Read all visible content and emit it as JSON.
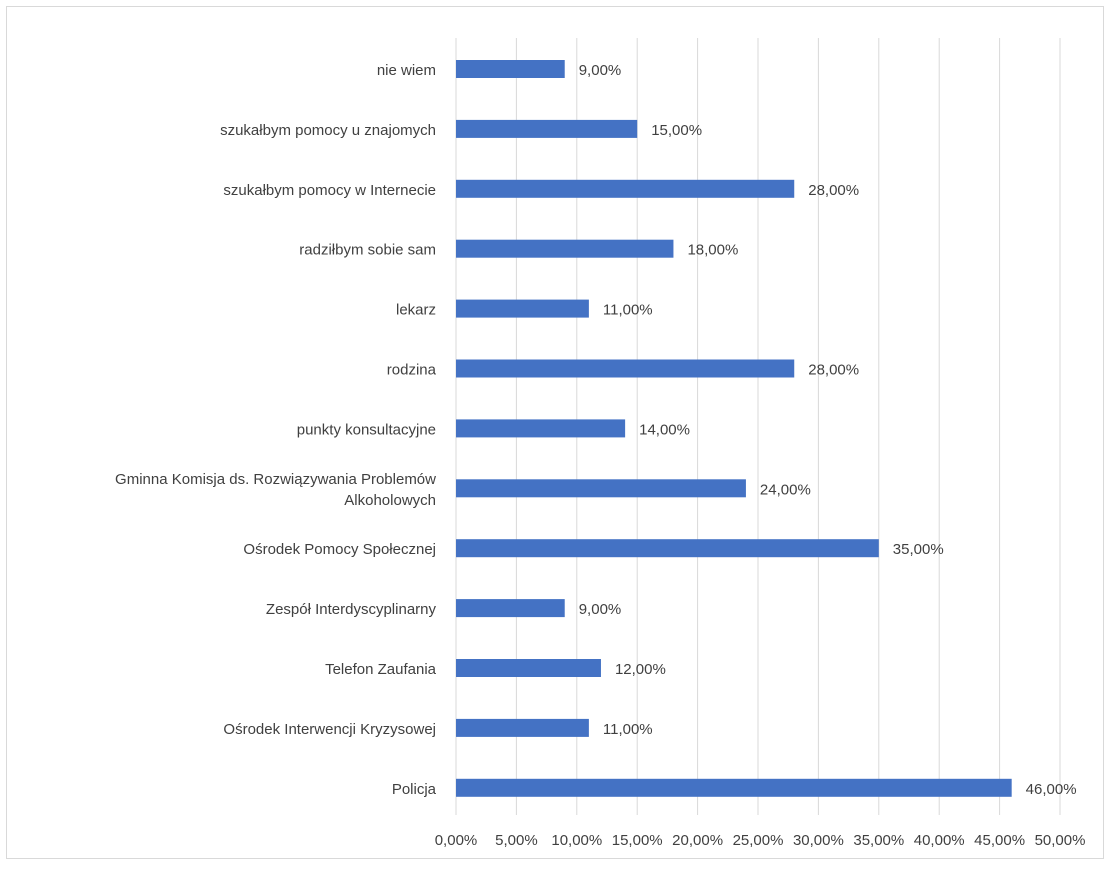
{
  "chart_data": {
    "type": "bar",
    "orientation": "horizontal",
    "categories": [
      "nie wiem",
      "szukałbym pomocy u znajomych",
      "szukałbym pomocy w Internecie",
      "radziłbym sobie sam",
      "lekarz",
      "rodzina",
      "punkty konsultacyjne",
      "Gminna Komisja ds. Rozwiązywania Problemów Alkoholowych",
      "Ośrodek Pomocy Społecznej",
      "Zespół Interdyscyplinarny",
      "Telefon Zaufania",
      "Ośrodek Interwencji Kryzysowej",
      "Policja"
    ],
    "category_label_lines": [
      [
        "nie wiem"
      ],
      [
        "szukałbym pomocy u znajomych"
      ],
      [
        "szukałbym pomocy w Internecie"
      ],
      [
        "radziłbym sobie sam"
      ],
      [
        "lekarz"
      ],
      [
        "rodzina"
      ],
      [
        "punkty konsultacyjne"
      ],
      [
        "Gminna Komisja ds. Rozwiązywania Problemów",
        "Alkoholowych"
      ],
      [
        "Ośrodek Pomocy Społecznej"
      ],
      [
        "Zespół Interdyscyplinarny"
      ],
      [
        "Telefon Zaufania"
      ],
      [
        "Ośrodek Interwencji Kryzysowej"
      ],
      [
        "Policja"
      ]
    ],
    "values": [
      9,
      15,
      28,
      18,
      11,
      28,
      14,
      24,
      35,
      9,
      12,
      11,
      46
    ],
    "data_labels": [
      "9,00%",
      "15,00%",
      "28,00%",
      "18,00%",
      "11,00%",
      "28,00%",
      "14,00%",
      "24,00%",
      "35,00%",
      "9,00%",
      "12,00%",
      "11,00%",
      "46,00%"
    ],
    "xlim": [
      0,
      50
    ],
    "x_ticks": [
      0,
      5,
      10,
      15,
      20,
      25,
      30,
      35,
      40,
      45,
      50
    ],
    "x_tick_labels": [
      "0,00%",
      "5,00%",
      "10,00%",
      "15,00%",
      "20,00%",
      "25,00%",
      "30,00%",
      "35,00%",
      "40,00%",
      "45,00%",
      "50,00%"
    ],
    "grid": true,
    "legend": "none",
    "title": "",
    "xlabel": "",
    "ylabel": ""
  },
  "colors": {
    "bar": "#4472C4",
    "grid": "#D9D9D9",
    "text": "#404040",
    "border": "#D9D9D9"
  }
}
